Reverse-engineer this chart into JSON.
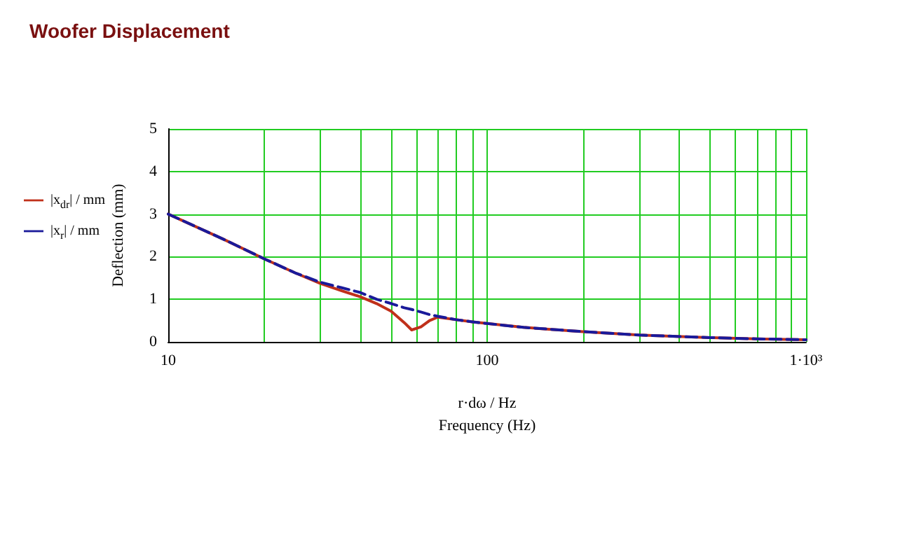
{
  "chart_data": {
    "type": "line",
    "title": "Woofer Displacement",
    "xlabel": "r·dω / Hz\nFrequency (Hz)",
    "ylabel": "Deflection (mm)",
    "log": "x",
    "xlim": [
      10,
      1000
    ],
    "ylim": [
      0,
      5
    ],
    "xticks": [
      10,
      100,
      {
        "value": 1000,
        "label": "1·10³"
      }
    ],
    "yticks": [
      0,
      1,
      2,
      3,
      4,
      5
    ],
    "grid": true,
    "legend": "left",
    "marker": "none",
    "series": [
      {
        "name": "|x$_{dr}$| / mm",
        "color": "#c0301a",
        "line_style": "solid",
        "x": [
          10,
          15,
          20,
          25,
          30,
          35,
          40,
          45,
          50,
          55,
          58,
          62,
          66,
          70,
          80,
          90,
          100,
          130,
          200,
          300,
          500,
          700,
          1000
        ],
        "values": [
          3.0,
          2.4,
          1.95,
          1.62,
          1.37,
          1.2,
          1.06,
          0.9,
          0.72,
          0.45,
          0.28,
          0.35,
          0.5,
          0.58,
          0.52,
          0.47,
          0.43,
          0.34,
          0.24,
          0.16,
          0.1,
          0.07,
          0.05
        ]
      },
      {
        "name": "|x$_{r}$| / mm",
        "color": "#1a1a9a",
        "line_style": "dashed",
        "x": [
          10,
          15,
          20,
          25,
          30,
          35,
          40,
          45,
          50,
          55,
          58,
          62,
          66,
          70,
          80,
          90,
          100,
          130,
          200,
          300,
          500,
          700,
          1000
        ],
        "values": [
          3.0,
          2.4,
          1.95,
          1.62,
          1.4,
          1.27,
          1.16,
          1.0,
          0.9,
          0.8,
          0.76,
          0.7,
          0.64,
          0.6,
          0.52,
          0.47,
          0.43,
          0.34,
          0.24,
          0.16,
          0.1,
          0.07,
          0.05
        ]
      }
    ]
  }
}
